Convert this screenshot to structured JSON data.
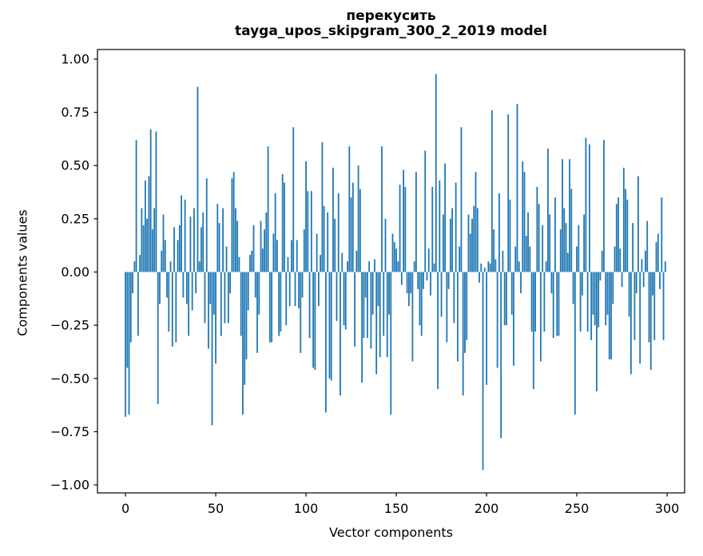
{
  "figure": {
    "title": "перекусить",
    "subtitle": "tayga_upos_skipgram_300_2_2019 model"
  },
  "chart_data": {
    "type": "bar",
    "title": "перекусить",
    "subtitle": "tayga_upos_skipgram_300_2_2019 model",
    "xlabel": "Vector components",
    "ylabel": "Components values",
    "bar_color": "#1f77b4",
    "x_ticks": [
      {
        "v": 0,
        "label": "0"
      },
      {
        "v": 50,
        "label": "50"
      },
      {
        "v": 100,
        "label": "100"
      },
      {
        "v": 150,
        "label": "150"
      },
      {
        "v": 200,
        "label": "200"
      },
      {
        "v": 250,
        "label": "250"
      },
      {
        "v": 300,
        "label": "300"
      }
    ],
    "y_ticks": [
      {
        "v": 1.0,
        "label": "1.00"
      },
      {
        "v": 0.75,
        "label": "0.75"
      },
      {
        "v": 0.5,
        "label": "0.50"
      },
      {
        "v": 0.25,
        "label": "0.25"
      },
      {
        "v": 0.0,
        "label": "0.00"
      },
      {
        "v": -0.25,
        "label": "−0.25"
      },
      {
        "v": -0.5,
        "label": "−0.50"
      },
      {
        "v": -0.75,
        "label": "−0.75"
      },
      {
        "v": -1.0,
        "label": "−1.00"
      }
    ],
    "xlim": [
      -15.5,
      309.7
    ],
    "ylim": [
      -1.0375,
      1.045
    ],
    "grid": false,
    "legend": null,
    "x_start": 0,
    "values": [
      -0.68,
      -0.45,
      -0.67,
      -0.33,
      -0.1,
      0.05,
      0.62,
      -0.3,
      0.08,
      0.3,
      0.22,
      0.43,
      0.25,
      0.45,
      0.67,
      0.2,
      0.3,
      0.66,
      -0.62,
      -0.15,
      0.1,
      0.27,
      0.15,
      -0.12,
      -0.28,
      0.05,
      -0.35,
      0.21,
      -0.33,
      0.15,
      0.22,
      0.36,
      -0.12,
      0.34,
      -0.15,
      -0.3,
      0.26,
      -0.18,
      0.3,
      -0.1,
      0.87,
      0.05,
      0.21,
      0.28,
      -0.24,
      0.44,
      -0.36,
      -0.15,
      -0.72,
      -0.2,
      -0.43,
      0.32,
      0.23,
      -0.3,
      0.3,
      -0.24,
      0.12,
      -0.24,
      -0.1,
      0.44,
      0.47,
      0.3,
      0.24,
      0.07,
      -0.3,
      -0.67,
      -0.53,
      -0.41,
      -0.18,
      0.08,
      0.1,
      0.22,
      -0.12,
      -0.38,
      -0.2,
      0.24,
      0.11,
      0.2,
      0.28,
      0.59,
      -0.33,
      -0.33,
      0.18,
      0.37,
      0.15,
      -0.3,
      -0.28,
      0.46,
      0.42,
      -0.25,
      0.07,
      -0.16,
      0.15,
      0.68,
      -0.16,
      0.15,
      -0.17,
      -0.38,
      -0.12,
      0.2,
      0.52,
      0.38,
      -0.31,
      0.38,
      -0.45,
      -0.46,
      0.18,
      -0.16,
      0.08,
      0.61,
      0.31,
      -0.66,
      0.28,
      -0.5,
      -0.51,
      0.49,
      0.25,
      -0.23,
      0.37,
      -0.58,
      0.09,
      -0.25,
      -0.27,
      0.05,
      0.59,
      0.35,
      0.42,
      -0.35,
      0.1,
      0.5,
      0.39,
      -0.52,
      -0.31,
      -0.12,
      -0.31,
      0.05,
      -0.36,
      -0.2,
      0.06,
      -0.48,
      -0.16,
      -0.4,
      0.59,
      -0.3,
      0.25,
      -0.4,
      -0.2,
      -0.67,
      0.18,
      0.14,
      0.11,
      0.05,
      0.41,
      -0.06,
      0.48,
      0.4,
      -0.1,
      -0.16,
      -0.1,
      -0.42,
      0.05,
      0.47,
      -0.08,
      -0.25,
      -0.3,
      -0.08,
      0.57,
      -0.04,
      0.11,
      -0.11,
      0.4,
      0.04,
      0.93,
      -0.55,
      0.43,
      -0.21,
      0.27,
      0.51,
      -0.33,
      -0.08,
      0.25,
      0.3,
      -0.24,
      0.42,
      -0.42,
      0.12,
      0.68,
      -0.58,
      -0.38,
      -0.32,
      0.27,
      0.18,
      0.25,
      0.31,
      0.47,
      0.3,
      -0.05,
      0.04,
      -0.93,
      0.02,
      -0.53,
      0.05,
      0.04,
      0.76,
      0.2,
      0.06,
      -0.45,
      0.37,
      -0.78,
      0.1,
      -0.25,
      -0.25,
      0.74,
      0.34,
      -0.2,
      -0.44,
      0.12,
      0.79,
      0.05,
      -0.1,
      0.52,
      0.47,
      0.17,
      0.28,
      0.12,
      -0.28,
      -0.55,
      -0.28,
      0.4,
      0.32,
      -0.42,
      0.22,
      -0.28,
      0.05,
      0.58,
      0.27,
      -0.1,
      -0.31,
      0.35,
      -0.3,
      -0.3,
      0.2,
      0.53,
      0.3,
      0.23,
      0.09,
      0.53,
      0.39,
      -0.15,
      -0.67,
      0.12,
      0.22,
      -0.28,
      -0.11,
      0.27,
      0.63,
      -0.28,
      0.6,
      -0.32,
      -0.2,
      -0.25,
      -0.56,
      -0.26,
      -0.04,
      0.1,
      0.62,
      -0.25,
      -0.2,
      -0.41,
      -0.41,
      -0.15,
      0.12,
      0.32,
      0.35,
      0.11,
      -0.07,
      0.49,
      0.39,
      0.34,
      -0.21,
      -0.48,
      0.23,
      -0.32,
      -0.1,
      0.45,
      -0.43,
      0.06,
      -0.07,
      0.1,
      0.24,
      -0.33,
      -0.46,
      -0.11,
      -0.32,
      0.14,
      0.18,
      -0.08,
      0.35,
      -0.32,
      0.05
    ]
  }
}
